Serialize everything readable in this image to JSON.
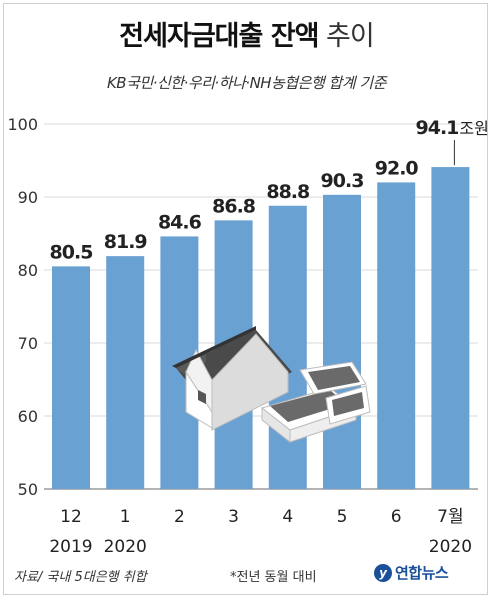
{
  "title": {
    "bold": "전세자금대출 잔액",
    "light": "추이"
  },
  "subtitle": "KB국민·신한·우리·하나·NH농협은행 합계 기준",
  "source": "자료/ 국내 5대은행 취합",
  "footnote": "*전년 동월 대비",
  "logo": {
    "mark": "y",
    "text": "연합뉴스"
  },
  "colors": {
    "bar": "#6aa1d3",
    "grid": "#d8d8d8",
    "axis": "#888888",
    "text": "#222222"
  },
  "chart_data": {
    "type": "bar",
    "categories": [
      "12",
      "1",
      "2",
      "3",
      "4",
      "5",
      "6",
      "7월"
    ],
    "year_labels": [
      "2019",
      "2020",
      "",
      "",
      "",
      "",
      "",
      "2020"
    ],
    "values": [
      80.5,
      81.9,
      84.6,
      86.8,
      88.8,
      90.3,
      92.0,
      94.1
    ],
    "value_labels": [
      "80.5",
      "81.9",
      "84.6",
      "86.8",
      "88.8",
      "90.3",
      "92.0",
      "94.1"
    ],
    "unit": "조원",
    "yticks": [
      50,
      60,
      70,
      80,
      90,
      100
    ],
    "ylim": [
      50,
      100
    ],
    "grid": true
  }
}
